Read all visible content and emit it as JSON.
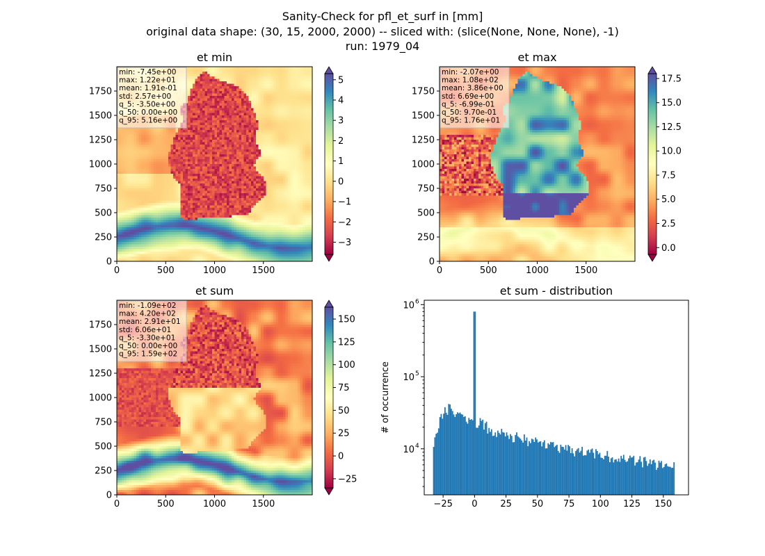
{
  "suptitle": {
    "line1": "Sanity-Check for pfl_et_surf in [mm]",
    "line2": "original data shape: (30, 15, 2000, 2000) -- sliced with: (slice(None, None, None), -1)",
    "line3": "run: 1979_04"
  },
  "chart_data": [
    {
      "type": "heatmap",
      "title": "et min",
      "xlim": [
        0,
        2000
      ],
      "ylim": [
        0,
        2000
      ],
      "xticks": [
        0,
        500,
        1000,
        1500
      ],
      "yticks": [
        0,
        250,
        500,
        750,
        1000,
        1250,
        1500,
        1750
      ],
      "colorbar": {
        "range": [
          -3.6,
          5.3
        ],
        "ticks": [
          5,
          4,
          3,
          2,
          1,
          0,
          -1,
          -2,
          -3
        ],
        "tick_labels": [
          "5",
          "4",
          "3",
          "2",
          "1",
          "0",
          "−1",
          "−2",
          "−3"
        ],
        "cmap": "Spectral",
        "extend": "both"
      },
      "stats": [
        "min: -7.45e+00",
        "max: 1.22e+01",
        "mean: 1.91e-01",
        "std: 2.57e+00",
        "q_5: -3.50e+00",
        "q_50: 0.00e+00",
        "q_95: 5.16e+00"
      ]
    },
    {
      "type": "heatmap",
      "title": "et max",
      "xlim": [
        0,
        2000
      ],
      "ylim": [
        0,
        2000
      ],
      "xticks": [
        0,
        500,
        1000,
        1500
      ],
      "yticks": [
        0,
        250,
        500,
        750,
        1000,
        1250,
        1500,
        1750
      ],
      "colorbar": {
        "range": [
          -0.7,
          18.0
        ],
        "ticks": [
          17.5,
          15.0,
          12.5,
          10.0,
          7.5,
          5.0,
          2.5,
          0.0
        ],
        "tick_labels": [
          "17.5",
          "15.0",
          "12.5",
          "10.0",
          "7.5",
          "5.0",
          "2.5",
          "0.0"
        ],
        "cmap": "Spectral",
        "extend": "both"
      },
      "stats": [
        "min: -2.07e+00",
        "max: 1.08e+02",
        "mean: 3.86e+00",
        "std: 6.69e+00",
        "q_5: -6.99e-01",
        "q_50: 9.70e-01",
        "q_95: 1.76e+01"
      ]
    },
    {
      "type": "heatmap",
      "title": "et sum",
      "xlim": [
        0,
        2000
      ],
      "ylim": [
        0,
        2000
      ],
      "xticks": [
        0,
        500,
        1000,
        1500
      ],
      "yticks": [
        0,
        250,
        500,
        750,
        1000,
        1250,
        1500,
        1750
      ],
      "colorbar": {
        "range": [
          -35,
          163
        ],
        "ticks": [
          150,
          125,
          100,
          75,
          50,
          25,
          0,
          -25
        ],
        "tick_labels": [
          "150",
          "125",
          "100",
          "75",
          "50",
          "25",
          "0",
          "−25"
        ],
        "cmap": "Spectral",
        "extend": "both"
      },
      "stats": [
        "min: -1.09e+02",
        "max: 4.20e+02",
        "mean: 2.91e+01",
        "std: 6.06e+01",
        "q_5: -3.30e+01",
        "q_50: 0.00e+00",
        "q_95: 1.59e+02"
      ]
    },
    {
      "type": "bar",
      "title": "et sum - distribution",
      "xlabel": "",
      "ylabel": "# of occurrence",
      "xlim": [
        -40,
        170
      ],
      "ylim": [
        2300,
        1150000
      ],
      "yscale": "log",
      "xticks": [
        -25,
        0,
        25,
        50,
        75,
        100,
        125,
        150
      ],
      "xtick_labels": [
        "−25",
        "0",
        "25",
        "50",
        "75",
        "100",
        "125",
        "150"
      ],
      "yticks": [
        10000,
        100000,
        1000000
      ],
      "color": "#1f77b4",
      "bin_range": [
        -33,
        159
      ],
      "envelope": {
        "x": [
          -33,
          -30,
          -25,
          -20,
          -15,
          -10,
          -5,
          -1,
          0,
          1,
          5,
          10,
          15,
          20,
          25,
          30,
          40,
          50,
          60,
          70,
          80,
          90,
          100,
          110,
          120,
          130,
          140,
          150,
          159
        ],
        "y": [
          9000,
          19000,
          30000,
          38000,
          33000,
          30000,
          26000,
          22000,
          800000,
          20000,
          23000,
          20000,
          18000,
          17000,
          16000,
          15000,
          13500,
          12000,
          11000,
          10000,
          9400,
          8800,
          8300,
          7800,
          7300,
          6800,
          6400,
          5900,
          5500
        ]
      }
    }
  ]
}
